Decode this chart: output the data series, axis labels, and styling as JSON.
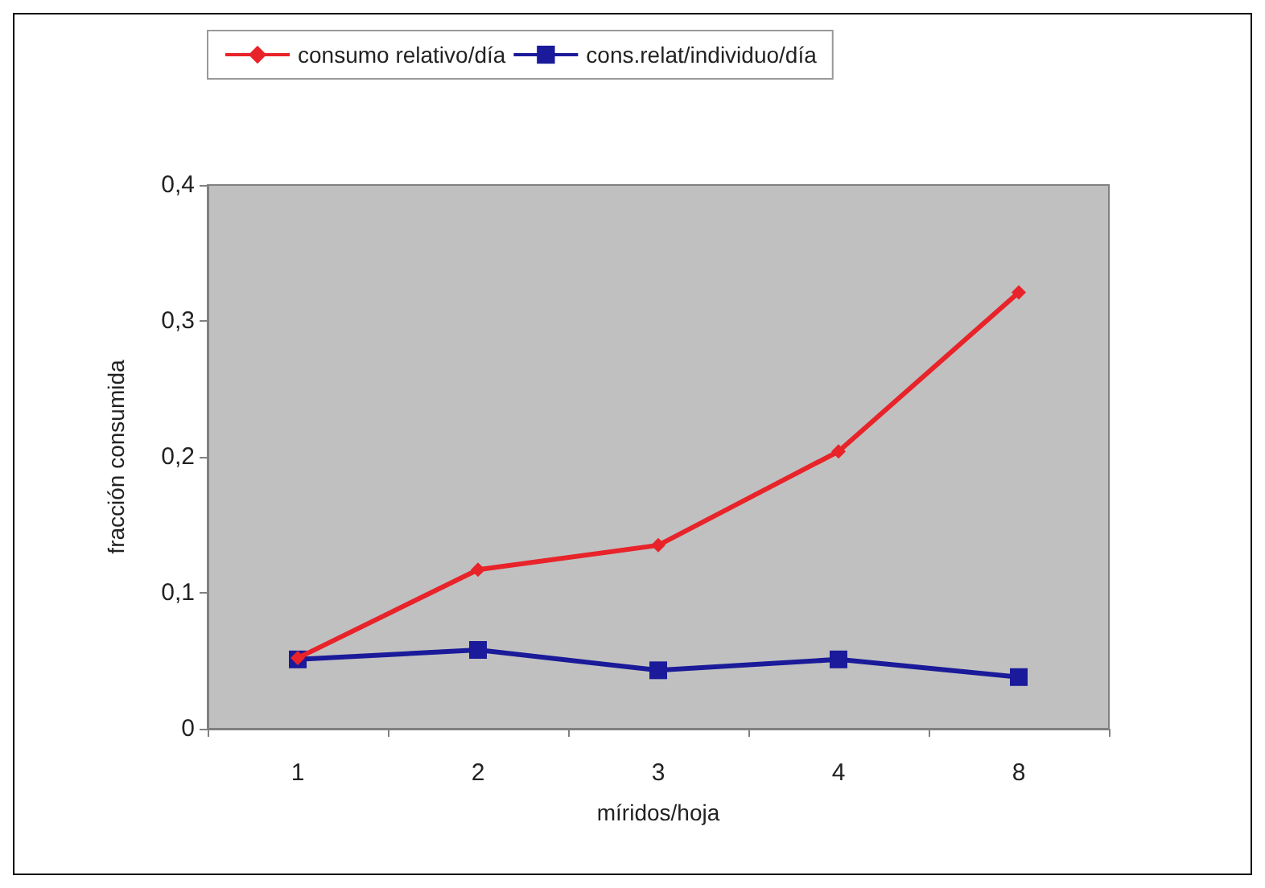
{
  "chart_data": {
    "type": "line",
    "xlabel": "míridos/hoja",
    "ylabel": "fracción consumida",
    "categories": [
      "1",
      "2",
      "3",
      "4",
      "8"
    ],
    "series": [
      {
        "name": "consumo relativo/día",
        "color": "#e8232a",
        "marker": "diamond",
        "values": [
          0.052,
          0.117,
          0.135,
          0.204,
          0.321
        ]
      },
      {
        "name": "cons.relat/individuo/día",
        "color": "#1a1a9a",
        "marker": "square",
        "values": [
          0.051,
          0.058,
          0.043,
          0.051,
          0.038
        ]
      }
    ],
    "ylim": [
      0,
      0.4
    ],
    "yticks": [
      0,
      {
        "value": 0.1,
        "label": "0,1"
      },
      {
        "value": 0.2,
        "label": "0,2"
      },
      {
        "value": 0.3,
        "label": "0,3"
      },
      {
        "value": 0.4,
        "label": "0,4"
      }
    ],
    "grid": false,
    "legend": "top"
  }
}
